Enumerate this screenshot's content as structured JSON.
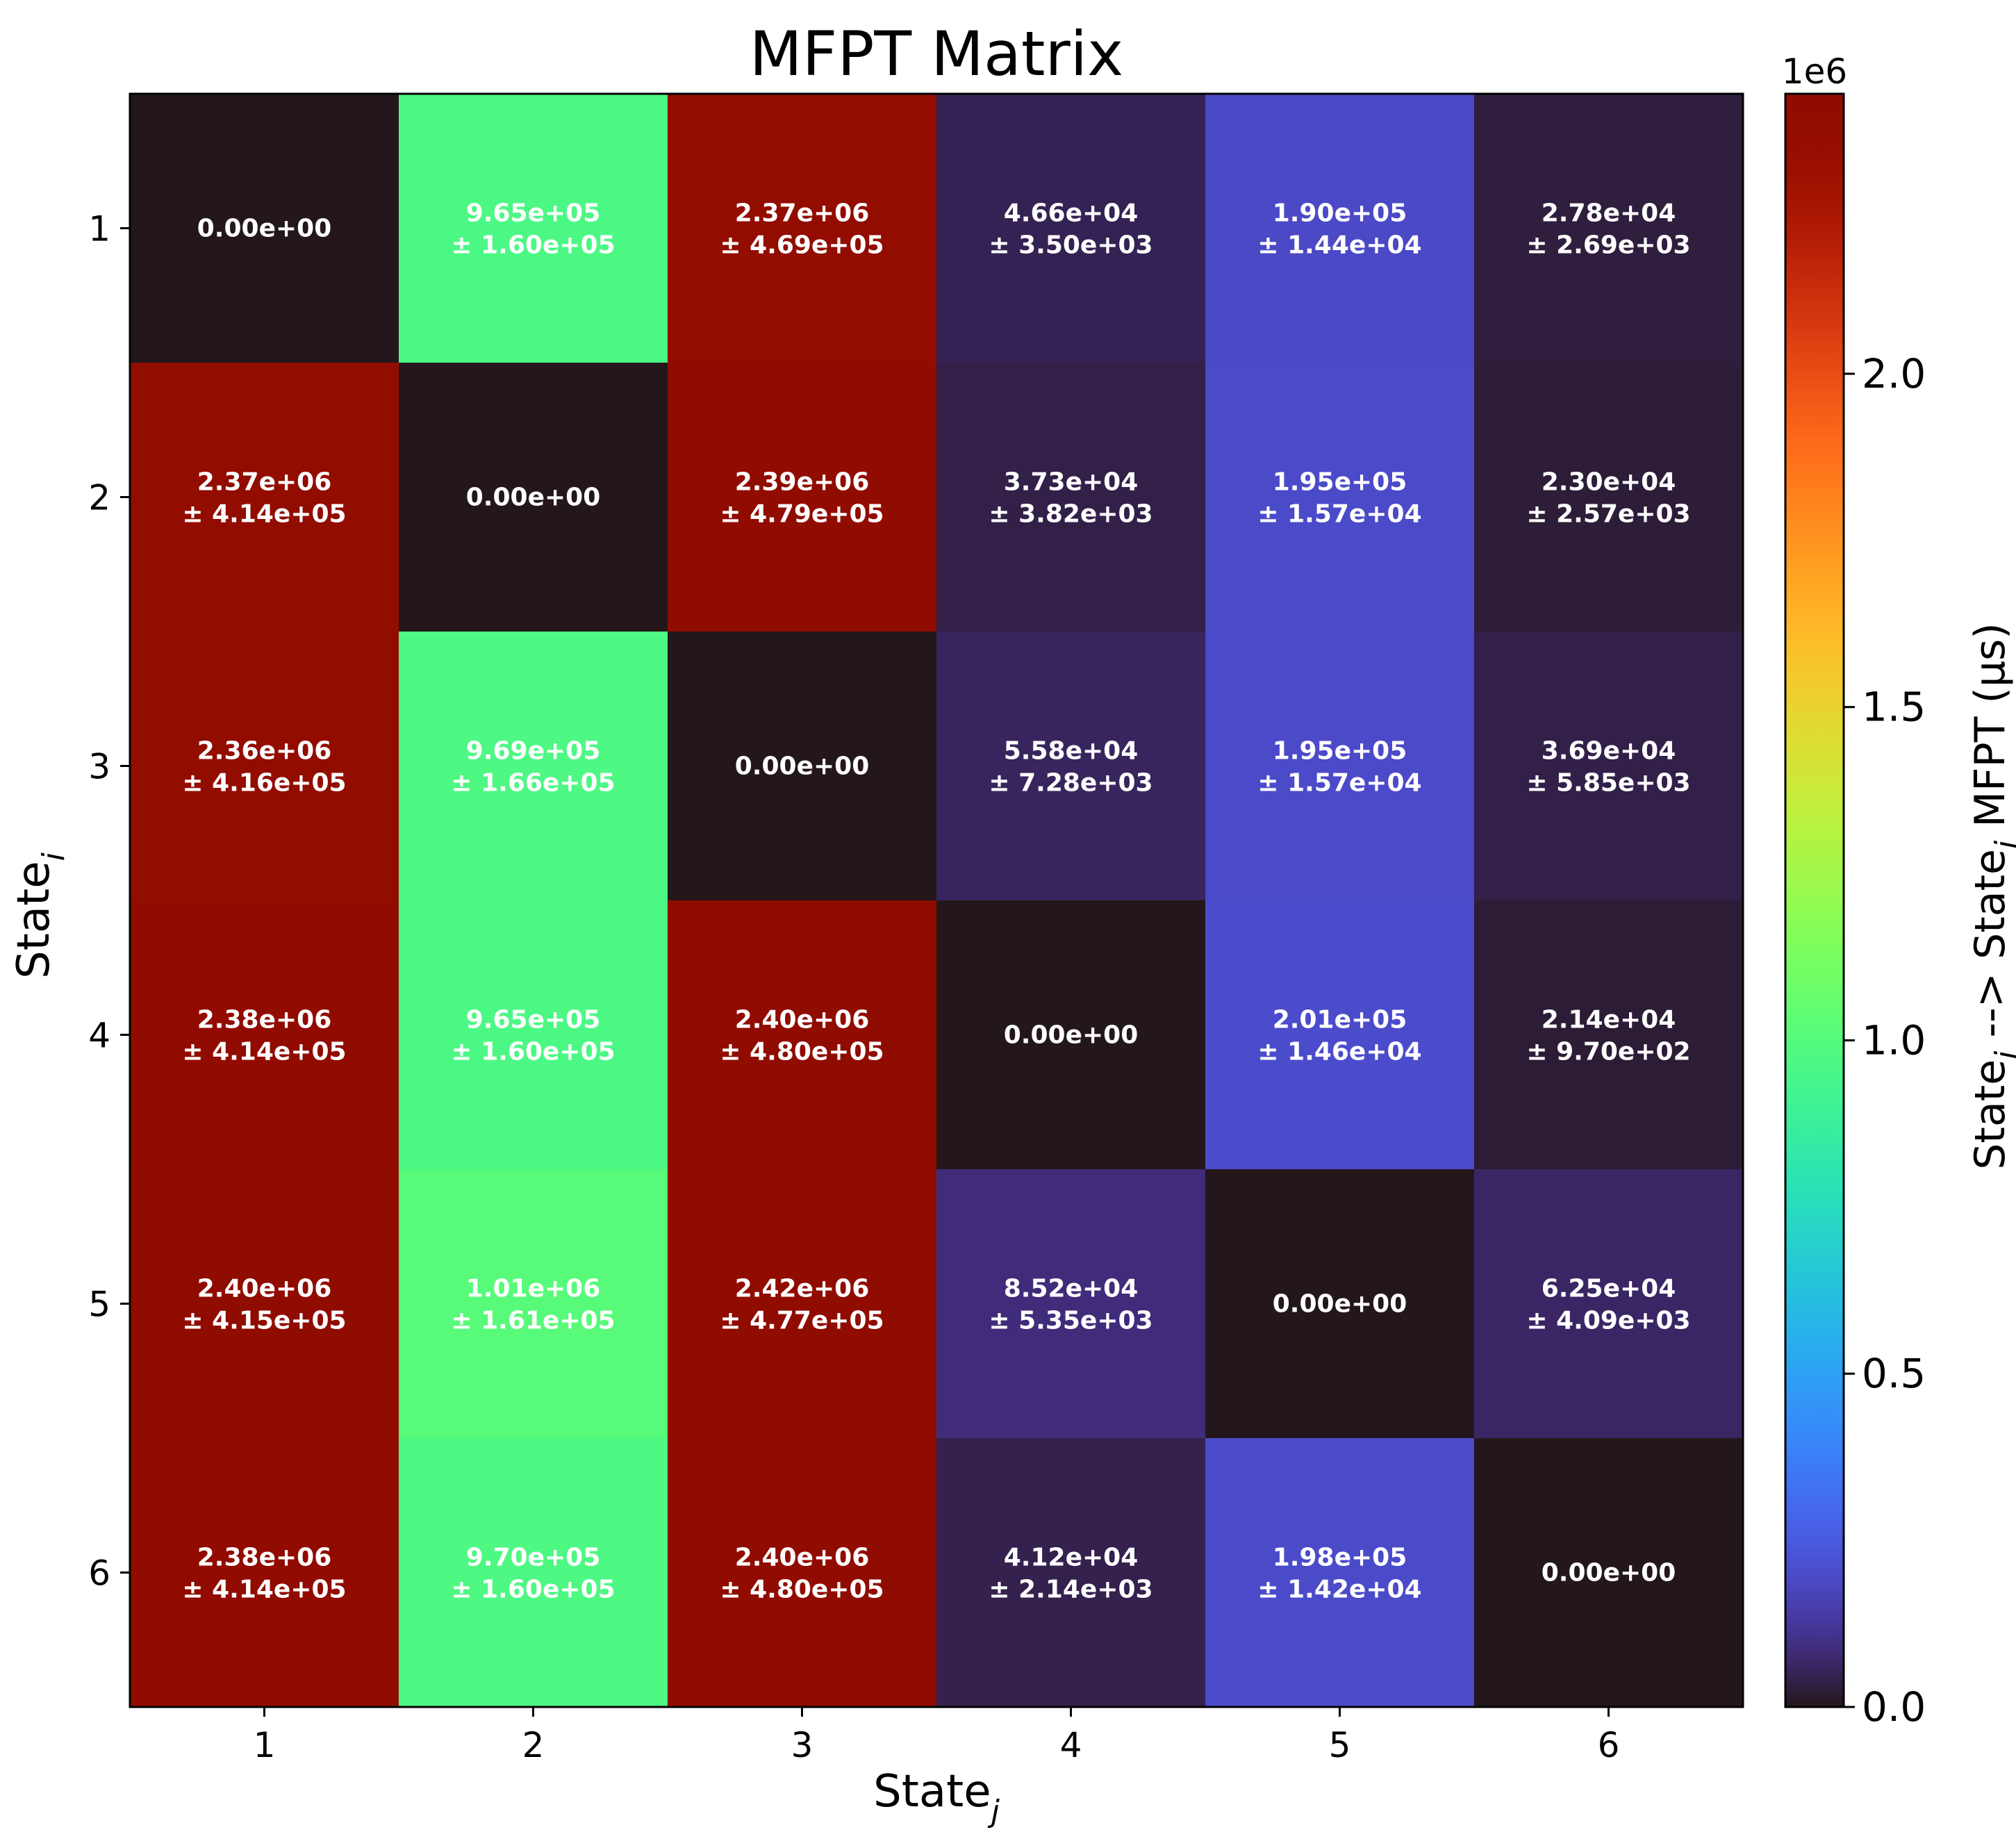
{
  "chart_data": {
    "type": "heatmap",
    "title": "MFPT Matrix",
    "xlabel": {
      "main": "State",
      "sub": "j"
    },
    "ylabel": {
      "main": "State",
      "sub": "i"
    },
    "x_categories": [
      "1",
      "2",
      "3",
      "4",
      "5",
      "6"
    ],
    "y_categories": [
      "1",
      "2",
      "3",
      "4",
      "5",
      "6"
    ],
    "values": [
      [
        0,
        965000,
        2370000,
        46600,
        190000,
        27800
      ],
      [
        2370000,
        0,
        2390000,
        37300,
        195000,
        23000
      ],
      [
        2360000,
        969000,
        0,
        55800,
        195000,
        36900
      ],
      [
        2380000,
        965000,
        2400000,
        0,
        201000,
        21400
      ],
      [
        2400000,
        1010000,
        2420000,
        85200,
        0,
        62500
      ],
      [
        2380000,
        970000,
        2400000,
        41200,
        198000,
        0
      ]
    ],
    "annotations": [
      [
        [
          "0.00e+00",
          ""
        ],
        [
          "9.65e+05",
          "± 1.60e+05"
        ],
        [
          "2.37e+06",
          "± 4.69e+05"
        ],
        [
          "4.66e+04",
          "± 3.50e+03"
        ],
        [
          "1.90e+05",
          "± 1.44e+04"
        ],
        [
          "2.78e+04",
          "± 2.69e+03"
        ]
      ],
      [
        [
          "2.37e+06",
          "± 4.14e+05"
        ],
        [
          "0.00e+00",
          ""
        ],
        [
          "2.39e+06",
          "± 4.79e+05"
        ],
        [
          "3.73e+04",
          "± 3.82e+03"
        ],
        [
          "1.95e+05",
          "± 1.57e+04"
        ],
        [
          "2.30e+04",
          "± 2.57e+03"
        ]
      ],
      [
        [
          "2.36e+06",
          "± 4.16e+05"
        ],
        [
          "9.69e+05",
          "± 1.66e+05"
        ],
        [
          "0.00e+00",
          ""
        ],
        [
          "5.58e+04",
          "± 7.28e+03"
        ],
        [
          "1.95e+05",
          "± 1.57e+04"
        ],
        [
          "3.69e+04",
          "± 5.85e+03"
        ]
      ],
      [
        [
          "2.38e+06",
          "± 4.14e+05"
        ],
        [
          "9.65e+05",
          "± 1.60e+05"
        ],
        [
          "2.40e+06",
          "± 4.80e+05"
        ],
        [
          "0.00e+00",
          ""
        ],
        [
          "2.01e+05",
          "± 1.46e+04"
        ],
        [
          "2.14e+04",
          "± 9.70e+02"
        ]
      ],
      [
        [
          "2.40e+06",
          "± 4.15e+05"
        ],
        [
          "1.01e+06",
          "± 1.61e+05"
        ],
        [
          "2.42e+06",
          "± 4.77e+05"
        ],
        [
          "8.52e+04",
          "± 5.35e+03"
        ],
        [
          "0.00e+00",
          ""
        ],
        [
          "6.25e+04",
          "± 4.09e+03"
        ]
      ],
      [
        [
          "2.38e+06",
          "± 4.14e+05"
        ],
        [
          "9.70e+05",
          "± 1.60e+05"
        ],
        [
          "2.40e+06",
          "± 4.80e+05"
        ],
        [
          "4.12e+04",
          "± 2.14e+03"
        ],
        [
          "1.98e+05",
          "± 1.42e+04"
        ],
        [
          "0.00e+00",
          ""
        ]
      ]
    ],
    "colorbar": {
      "colormap": "turbo",
      "vmin": 0,
      "vmax": 2420000,
      "ticks": [
        0,
        500000,
        1000000,
        1500000,
        2000000
      ],
      "tick_labels": [
        "0.0",
        "0.5",
        "1.0",
        "1.5",
        "2.0"
      ],
      "offset_text": "1e6",
      "label": {
        "pre": "State",
        "pre_sub": "i",
        "mid": " --> State",
        "mid_sub": "j",
        "post": " MFPT (μs)"
      }
    },
    "grid": false
  }
}
